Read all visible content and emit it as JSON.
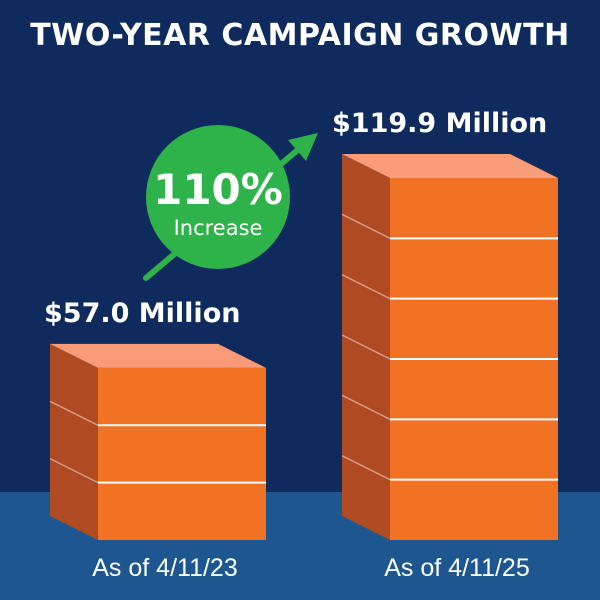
{
  "colors": {
    "background": "#0f2a5c",
    "floor": "#1e5790",
    "bar_front": "#f07222",
    "bar_side": "#b04a22",
    "bar_top": "#fa9b7a",
    "badge": "#2eb24a",
    "text": "#ffffff"
  },
  "chart_data": {
    "type": "bar",
    "title": "TWO-YEAR CAMPAIGN GROWTH",
    "categories": [
      "As of 4/11/23",
      "As of 4/11/25"
    ],
    "values": [
      57.0,
      119.9
    ],
    "value_labels": [
      "$57.0 Million",
      "$119.9 Million"
    ],
    "segments_per_bar": [
      3,
      6
    ],
    "annotation": {
      "percent": "110%",
      "text": "Increase"
    },
    "grid": false,
    "legend": "none"
  }
}
